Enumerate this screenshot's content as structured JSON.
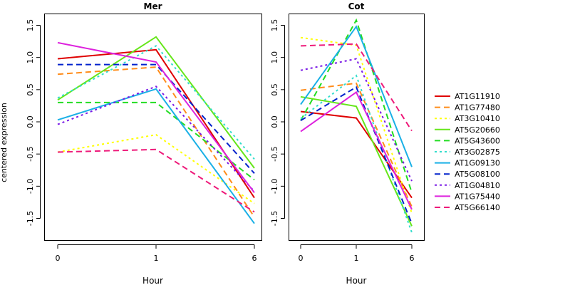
{
  "ylabel": "centered expression",
  "xlabel": "Hour",
  "legend_placement": "right",
  "legend": [
    {
      "name": "AT1G11910",
      "color": "#DF0000",
      "dash": "solid"
    },
    {
      "name": "AT1G77480",
      "color": "#FF8C1A",
      "dash": "dashed"
    },
    {
      "name": "AT3G10410",
      "color": "#FFFF00",
      "dash": "dotted"
    },
    {
      "name": "AT5G20660",
      "color": "#66E61A",
      "dash": "solid"
    },
    {
      "name": "AT5G43600",
      "color": "#22DD22",
      "dash": "dashed"
    },
    {
      "name": "AT3G02875",
      "color": "#33DDCC",
      "dash": "dotted"
    },
    {
      "name": "AT1G09130",
      "color": "#1AB0E6",
      "dash": "solid"
    },
    {
      "name": "AT5G08100",
      "color": "#0022CC",
      "dash": "dashed"
    },
    {
      "name": "AT1G04810",
      "color": "#7A1AE6",
      "dash": "dotted"
    },
    {
      "name": "AT1G75440",
      "color": "#DD22DD",
      "dash": "solid"
    },
    {
      "name": "AT5G66140",
      "color": "#EE1A7A",
      "dash": "dashed"
    }
  ],
  "chart_data": [
    {
      "type": "line",
      "title": "Mer",
      "xlabel": "Hour",
      "ylabel": "centered expression",
      "x": [
        0,
        1,
        6
      ],
      "ylim": [
        -1.8,
        1.7
      ],
      "yticks": [
        -1.5,
        -1.0,
        -0.5,
        0.0,
        0.5,
        1.0,
        1.5
      ],
      "ytick_labels": [
        "-1.5",
        "-1.0",
        "-0.5",
        "0.0",
        "0.5",
        "1.0",
        "1.5"
      ],
      "xtick_labels": [
        "0",
        "1",
        "6"
      ],
      "grid": false,
      "series": [
        {
          "name": "AT1G11910",
          "values": [
            0.98,
            1.12,
            -1.18
          ]
        },
        {
          "name": "AT1G77480",
          "values": [
            0.74,
            0.85,
            -1.48
          ]
        },
        {
          "name": "AT3G10410",
          "values": [
            -0.47,
            -0.2,
            -1.27
          ]
        },
        {
          "name": "AT5G20660",
          "values": [
            0.34,
            1.32,
            -0.72
          ]
        },
        {
          "name": "AT5G43600",
          "values": [
            0.3,
            0.3,
            -0.9
          ]
        },
        {
          "name": "AT3G02875",
          "values": [
            0.37,
            1.18,
            -0.58
          ]
        },
        {
          "name": "AT1G09130",
          "values": [
            0.03,
            0.51,
            -1.58
          ]
        },
        {
          "name": "AT5G08100",
          "values": [
            0.89,
            0.89,
            -0.8
          ]
        },
        {
          "name": "AT1G04810",
          "values": [
            -0.04,
            0.55,
            -1.08
          ]
        },
        {
          "name": "AT1G75440",
          "values": [
            1.23,
            0.93,
            -1.1
          ]
        },
        {
          "name": "AT5G66140",
          "values": [
            -0.47,
            -0.43,
            -1.4
          ]
        }
      ]
    },
    {
      "type": "line",
      "title": "Cot",
      "xlabel": "Hour",
      "ylabel": "",
      "x": [
        0,
        1,
        6
      ],
      "ylim": [
        -1.8,
        1.7
      ],
      "yticks": [
        -1.5,
        -1.0,
        -0.5,
        0.0,
        0.5,
        1.0,
        1.5
      ],
      "ytick_labels": [
        "-1.5",
        "-1.0",
        "-0.5",
        "0.0",
        "0.5",
        "1.0",
        "1.5"
      ],
      "xtick_labels": [
        "0",
        "1",
        "6"
      ],
      "grid": false,
      "series": [
        {
          "name": "AT1G11910",
          "values": [
            0.16,
            0.06,
            -1.18
          ]
        },
        {
          "name": "AT1G77480",
          "values": [
            0.49,
            0.6,
            -1.32
          ]
        },
        {
          "name": "AT3G10410",
          "values": [
            1.31,
            1.19,
            -1.42
          ]
        },
        {
          "name": "AT5G20660",
          "values": [
            0.39,
            0.24,
            -1.62
          ]
        },
        {
          "name": "AT5G43600",
          "values": [
            0.02,
            1.58,
            -1.1
          ]
        },
        {
          "name": "AT3G02875",
          "values": [
            0.05,
            0.72,
            -1.72
          ]
        },
        {
          "name": "AT1G09130",
          "values": [
            0.27,
            1.48,
            -0.7
          ]
        },
        {
          "name": "AT5G08100",
          "values": [
            0.02,
            0.54,
            -1.58
          ]
        },
        {
          "name": "AT1G04810",
          "values": [
            0.8,
            0.98,
            -0.92
          ]
        },
        {
          "name": "AT1G75440",
          "values": [
            -0.15,
            0.46,
            -1.36
          ]
        },
        {
          "name": "AT5G66140",
          "values": [
            1.18,
            1.21,
            -0.14
          ]
        }
      ]
    }
  ]
}
